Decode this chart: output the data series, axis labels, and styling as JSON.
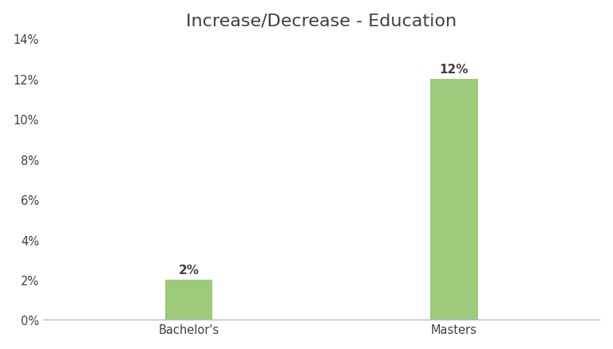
{
  "title": "Increase/Decrease - Education",
  "categories": [
    "Bachelor's",
    "Masters"
  ],
  "values": [
    0.02,
    0.12
  ],
  "bar_color": "#9DC97A",
  "bar_labels": [
    "2%",
    "12%"
  ],
  "ylim": [
    0,
    0.14
  ],
  "yticks": [
    0.0,
    0.02,
    0.04,
    0.06,
    0.08,
    0.1,
    0.12,
    0.14
  ],
  "ytick_labels": [
    "0%",
    "2%",
    "4%",
    "6%",
    "8%",
    "10%",
    "12%",
    "14%"
  ],
  "background_color": "#ffffff",
  "title_fontsize": 16,
  "tick_fontsize": 10.5,
  "label_fontsize": 11,
  "bar_width": 0.18,
  "axis_color": "#bbbbbb",
  "text_color": "#404040"
}
